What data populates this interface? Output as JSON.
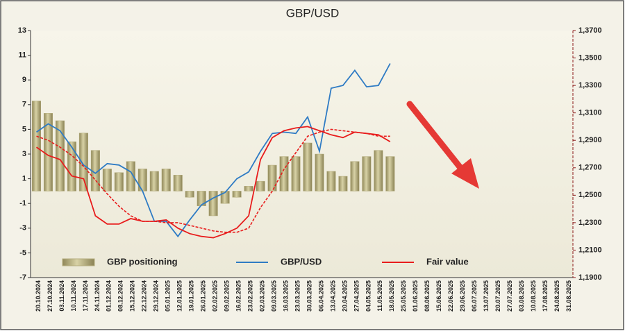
{
  "chart_data": {
    "type": "bar",
    "title": "GBP/USD",
    "categories": [
      "20.10.2024",
      "27.10.2024",
      "03.11.2024",
      "10.11.2024",
      "17.11.2024",
      "24.11.2024",
      "01.12.2024",
      "08.12.2024",
      "15.12.2024",
      "22.12.2024",
      "29.12.2024",
      "05.01.2025",
      "12.01.2025",
      "19.01.2025",
      "26.01.2025",
      "02.02.2025",
      "09.02.2025",
      "16.02.2025",
      "23.02.2025",
      "02.03.2025",
      "09.03.2025",
      "16.03.2025",
      "23.03.2025",
      "30.03.2025",
      "06.04.2025",
      "13.04.2025",
      "20.04.2025",
      "27.04.2025",
      "04.05.2025",
      "11.05.2025",
      "18.05.2025",
      "25.05.2025",
      "01.06.2025",
      "08.06.2025",
      "15.06.2025",
      "22.06.2025",
      "29.06.2025",
      "06.07.2025",
      "13.07.2025",
      "20.07.2025",
      "27.07.2025",
      "03.08.2025",
      "10.08.2025",
      "17.08.2025",
      "24.08.2025",
      "31.08.2025"
    ],
    "series": [
      {
        "name": "GBP positioning",
        "type": "bar",
        "color": "#b5ad7e",
        "values": [
          7.3,
          6.3,
          5.7,
          4.0,
          4.7,
          3.3,
          1.8,
          1.5,
          2.4,
          1.8,
          1.6,
          1.8,
          1.3,
          -0.5,
          -1.2,
          -2.0,
          -1.0,
          -0.5,
          0.4,
          0.8,
          2.1,
          2.8,
          2.8,
          3.9,
          3.0,
          1.6,
          1.2,
          2.4,
          2.8,
          3.3,
          2.8,
          null,
          null,
          null,
          null,
          null,
          null,
          null,
          null,
          null,
          null,
          null,
          null,
          null,
          null,
          null
        ]
      },
      {
        "name": "GBP/USD",
        "type": "line",
        "axis": "y2",
        "color": "#2e7bc4",
        "values": [
          1.296,
          1.302,
          1.297,
          1.285,
          1.272,
          1.266,
          1.273,
          1.272,
          1.267,
          1.253,
          1.231,
          1.231,
          1.22,
          1.232,
          1.243,
          1.248,
          1.252,
          1.262,
          1.267,
          1.282,
          1.295,
          1.296,
          1.295,
          1.307,
          1.282,
          1.328,
          1.33,
          1.341,
          1.329,
          1.33,
          1.346,
          null,
          null,
          null,
          null,
          null,
          null,
          null,
          null,
          null,
          null,
          null,
          null,
          null,
          null,
          null
        ]
      },
      {
        "name": "Fair value",
        "type": "line",
        "axis": "y2",
        "color": "#e81c1c",
        "values": [
          1.285,
          1.279,
          1.276,
          1.264,
          1.262,
          1.235,
          1.229,
          1.229,
          1.233,
          1.231,
          1.231,
          1.232,
          1.226,
          1.222,
          1.22,
          1.219,
          1.222,
          1.226,
          1.235,
          1.276,
          1.292,
          1.297,
          1.299,
          1.3,
          1.297,
          1.294,
          1.292,
          1.296,
          1.295,
          1.294,
          1.289,
          null,
          null,
          null,
          null,
          null,
          null,
          null,
          null,
          null,
          null,
          null,
          null,
          null,
          null,
          null
        ]
      },
      {
        "type": "line",
        "axis": "y2",
        "dashed": true,
        "color": "#e81c1c",
        "values": [
          1.293,
          1.29,
          1.285,
          1.279,
          1.271,
          1.261,
          1.251,
          1.242,
          1.235,
          1.231,
          1.231,
          1.23,
          1.23,
          1.228,
          1.226,
          1.224,
          1.223,
          1.223,
          1.226,
          1.241,
          1.253,
          1.269,
          1.281,
          1.293,
          1.296,
          1.298,
          1.297,
          1.296,
          1.295,
          1.293,
          1.293,
          null,
          null,
          null,
          null,
          null,
          null,
          null,
          null,
          null,
          null,
          null,
          null,
          null,
          null,
          null
        ]
      }
    ],
    "ylim": [
      -7,
      13
    ],
    "yticks": [
      -7,
      -5,
      -3,
      -1,
      1,
      3,
      5,
      7,
      9,
      11,
      13
    ],
    "y2lim": [
      1.19,
      1.37
    ],
    "y2ticks": [
      {
        "value": 1.19,
        "label": "1,1900"
      },
      {
        "value": 1.21,
        "label": "1,2100"
      },
      {
        "value": 1.23,
        "label": "1,2300"
      },
      {
        "value": 1.25,
        "label": "1,2500"
      },
      {
        "value": 1.27,
        "label": "1,2700"
      },
      {
        "value": 1.29,
        "label": "1,2900"
      },
      {
        "value": 1.31,
        "label": "1,3100"
      },
      {
        "value": 1.33,
        "label": "1,3300"
      },
      {
        "value": 1.35,
        "label": "1,3500"
      },
      {
        "value": 1.37,
        "label": "1,3700"
      }
    ],
    "legend": "bottom",
    "grid": false
  }
}
